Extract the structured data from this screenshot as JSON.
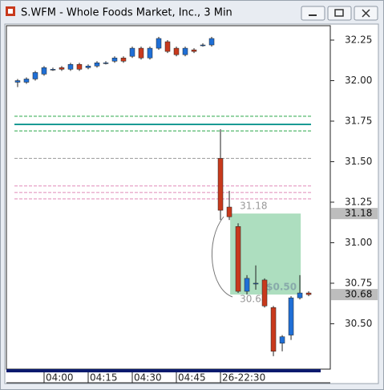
{
  "window": {
    "title": "S.WFM - Whole Foods Market, Inc., 3 Min"
  },
  "chart_data": {
    "type": "candlestick",
    "up_color": "#1f6fd6",
    "down_color": "#c8391c",
    "open": [
      31.99,
      31.99,
      32.01,
      32.04,
      32.07,
      32.08,
      32.07,
      32.1,
      32.08,
      32.09,
      32.11,
      32.12,
      32.14,
      32.15,
      32.2,
      32.14,
      32.2,
      32.24,
      32.2,
      32.16,
      32.19,
      32.22,
      32.22,
      31.52,
      31.22,
      31.1,
      30.7,
      30.75,
      30.77,
      30.6,
      30.38,
      30.43,
      30.66,
      30.69
    ],
    "high": [
      32.01,
      32.02,
      32.06,
      32.09,
      32.08,
      32.09,
      32.11,
      32.11,
      32.1,
      32.12,
      32.12,
      32.15,
      32.15,
      32.21,
      32.21,
      32.21,
      32.27,
      32.25,
      32.21,
      32.21,
      32.2,
      32.23,
      32.27,
      31.7,
      31.32,
      31.12,
      30.8,
      30.86,
      30.78,
      30.61,
      30.43,
      30.67,
      30.8,
      30.7
    ],
    "low": [
      31.96,
      31.98,
      32.0,
      32.03,
      32.06,
      32.06,
      32.06,
      32.06,
      32.07,
      32.08,
      32.1,
      32.11,
      32.11,
      32.14,
      32.13,
      32.13,
      32.19,
      32.17,
      32.15,
      32.15,
      32.17,
      32.21,
      32.21,
      31.14,
      31.14,
      30.69,
      30.68,
      30.71,
      30.6,
      30.3,
      30.33,
      30.4,
      30.65,
      30.67
    ],
    "close": [
      32.0,
      32.01,
      32.05,
      32.08,
      32.07,
      32.07,
      32.1,
      32.07,
      32.09,
      32.11,
      32.11,
      32.14,
      32.12,
      32.2,
      32.14,
      32.2,
      32.26,
      32.18,
      32.16,
      32.2,
      32.18,
      32.22,
      32.26,
      31.2,
      31.16,
      30.7,
      30.78,
      30.75,
      30.61,
      30.33,
      30.42,
      30.66,
      30.69,
      30.68
    ],
    "xlim": [
      -1.27,
      35.45
    ],
    "xticks": [
      {
        "value": 3,
        "label": "04:00"
      },
      {
        "value": 8,
        "label": "04:15"
      },
      {
        "value": 13,
        "label": "04:30"
      },
      {
        "value": 18,
        "label": "04:45"
      },
      {
        "value": 23,
        "label": "26-22:30"
      }
    ],
    "ylim": [
      30.22,
      32.339
    ],
    "yticks": [
      {
        "value": 30.5,
        "label": "30.50"
      },
      30.75,
      {
        "value": 31,
        "label": "31.00"
      },
      31.25,
      {
        "value": 31.5,
        "label": "31.50"
      },
      31.75,
      {
        "value": 32,
        "label": "32.00"
      },
      32.25
    ],
    "hlines": [
      {
        "value": 31.78,
        "color": "#2aa84a",
        "dash": true
      },
      {
        "value": 31.73,
        "color": "#1a9a94",
        "dash": false
      },
      {
        "value": 31.69,
        "color": "#2aa84a",
        "dash": true
      },
      {
        "value": 31.52,
        "color": "#999999",
        "dash": true
      },
      {
        "value": 31.35,
        "color": "#e08ab8",
        "dash": true
      },
      {
        "value": 31.31,
        "color": "#e08ab8",
        "dash": true
      },
      {
        "value": 31.27,
        "color": "#e08ab8",
        "dash": true
      }
    ],
    "range_box": {
      "x": [
        24.1,
        32.1
      ],
      "y": [
        31.18,
        30.68
      ],
      "label": "$0.50",
      "color": "#9fd8b4"
    },
    "price_markers": [
      31.18,
      30.68
    ]
  }
}
